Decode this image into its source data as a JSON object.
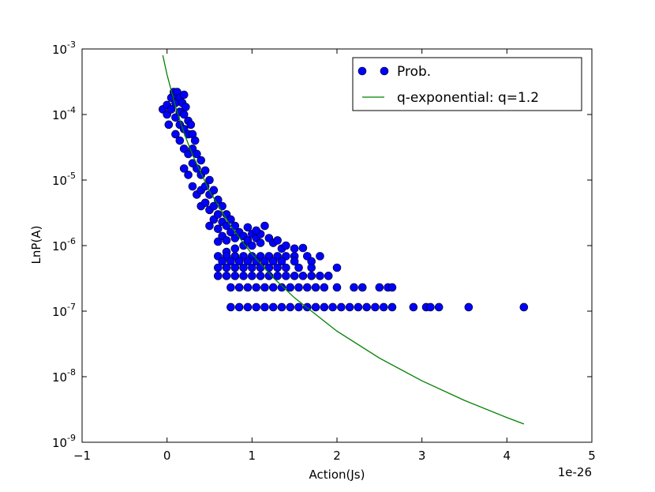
{
  "chart_data": {
    "type": "scatter",
    "xlabel": "Action(Js)",
    "ylabel": "LnP(A)",
    "x_offset_label": "1e-26",
    "xlim": [
      -1,
      5
    ],
    "ylim": [
      1e-09,
      0.001
    ],
    "log_y": true,
    "xticks": [
      {
        "value": -1,
        "label": "−1"
      },
      0,
      1,
      2,
      3,
      4,
      5
    ],
    "yticks": [
      {
        "value": 1e-09,
        "label": "10-9"
      },
      {
        "value": 1e-08,
        "label": "10-8"
      },
      {
        "value": 1e-07,
        "label": "10-7"
      },
      {
        "value": 1e-06,
        "label": "10-6"
      },
      {
        "value": 1e-05,
        "label": "10-5"
      },
      {
        "value": 0.0001,
        "label": "10-4"
      },
      {
        "value": 0.001,
        "label": "10-3"
      }
    ],
    "legend": "upper right",
    "series": [
      {
        "name": "Prob.",
        "type": "scatter",
        "color": "#0000ff",
        "x": [
          -0.05,
          0,
          0,
          0.02,
          0.05,
          0.05,
          0.08,
          0.1,
          0.1,
          0.1,
          0.1,
          0.12,
          0.15,
          0.15,
          0.15,
          0.15,
          0.18,
          0.2,
          0.2,
          0.2,
          0.2,
          0.2,
          0.22,
          0.25,
          0.25,
          0.25,
          0.25,
          0.28,
          0.3,
          0.3,
          0.3,
          0.3,
          0.33,
          0.35,
          0.35,
          0.35,
          0.4,
          0.4,
          0.4,
          0.4,
          0.45,
          0.45,
          0.45,
          0.5,
          0.5,
          0.5,
          0.5,
          0.55,
          0.55,
          0.55,
          0.6,
          0.6,
          0.6,
          0.6,
          0.65,
          0.65,
          0.65,
          0.7,
          0.7,
          0.7,
          0.7,
          0.75,
          0.75,
          0.8,
          0.8,
          0.8,
          0.85,
          0.9,
          0.9,
          0.95,
          1.0,
          1.0,
          1.05,
          1.1,
          1.1,
          1.15,
          1.2,
          1.25,
          1.3,
          1.35,
          1.4,
          1.5,
          1.6,
          1.05,
          0.95,
          0.6,
          0.7,
          0.8,
          0.9,
          1.0,
          1.1,
          1.2,
          1.3,
          1.4,
          1.5,
          1.65,
          1.8,
          0.65,
          0.75,
          0.85,
          0.95,
          1.05,
          1.15,
          1.25,
          1.35,
          1.5,
          1.7,
          0.6,
          0.7,
          0.8,
          0.9,
          1.0,
          1.1,
          1.2,
          1.3,
          1.4,
          1.55,
          1.7,
          2.0,
          0.6,
          0.7,
          0.8,
          0.9,
          1.0,
          1.1,
          1.2,
          1.3,
          1.4,
          1.5,
          1.6,
          1.7,
          1.8,
          1.9,
          0.75,
          0.85,
          0.95,
          1.05,
          1.15,
          1.25,
          1.35,
          1.45,
          1.55,
          1.65,
          1.75,
          1.85,
          2.0,
          2.2,
          2.3,
          2.5,
          2.6,
          2.65,
          0.75,
          0.85,
          0.95,
          1.05,
          1.15,
          1.25,
          1.35,
          1.45,
          1.55,
          1.65,
          1.75,
          1.85,
          1.95,
          2.05,
          2.15,
          2.25,
          2.35,
          2.45,
          2.55,
          2.65,
          2.9,
          3.05,
          3.1,
          3.2,
          3.55,
          4.2
        ],
        "values": [
          0.00012,
          0.0001,
          0.00014,
          7e-05,
          0.00018,
          0.00012,
          0.00022,
          0.0002,
          0.00015,
          9e-05,
          5e-05,
          0.00022,
          0.00018,
          0.00011,
          7e-05,
          4e-05,
          0.00015,
          0.0002,
          0.0001,
          6e-05,
          3e-05,
          1.5e-05,
          0.00013,
          8e-05,
          5e-05,
          2.5e-05,
          1.2e-05,
          7e-05,
          5e-05,
          3e-05,
          1.8e-05,
          8e-06,
          4e-05,
          2.5e-05,
          1.5e-05,
          6e-06,
          2e-05,
          1.2e-05,
          7e-06,
          4e-06,
          1.4e-05,
          8e-06,
          4.5e-06,
          1e-05,
          6e-06,
          3.5e-06,
          2e-06,
          7e-06,
          4e-06,
          2.5e-06,
          5e-06,
          3e-06,
          1.8e-06,
          1.15e-06,
          4e-06,
          2.3e-06,
          1.4e-06,
          3e-06,
          2e-06,
          1.2e-06,
          8e-07,
          2.5e-06,
          1.6e-06,
          2e-06,
          1.3e-06,
          9e-07,
          1.6e-06,
          1.4e-06,
          1e-06,
          1.2e-06,
          1.5e-06,
          1e-06,
          1.3e-06,
          1.1e-06,
          1.5e-06,
          2e-06,
          1.3e-06,
          1.1e-06,
          1.2e-06,
          9e-07,
          1e-06,
          9e-07,
          9.2e-07,
          1.7e-06,
          1.9e-06,
          6.9e-07,
          6.9e-07,
          6.9e-07,
          6.9e-07,
          6.9e-07,
          6.9e-07,
          6.9e-07,
          6.9e-07,
          6.9e-07,
          6.9e-07,
          6.9e-07,
          6.9e-07,
          5.75e-07,
          5.75e-07,
          5.75e-07,
          5.75e-07,
          5.75e-07,
          5.75e-07,
          5.75e-07,
          5.75e-07,
          5.75e-07,
          5.75e-07,
          4.6e-07,
          4.6e-07,
          4.6e-07,
          4.6e-07,
          4.6e-07,
          4.6e-07,
          4.6e-07,
          4.6e-07,
          4.6e-07,
          4.6e-07,
          4.6e-07,
          4.6e-07,
          3.45e-07,
          3.45e-07,
          3.45e-07,
          3.45e-07,
          3.45e-07,
          3.45e-07,
          3.45e-07,
          3.45e-07,
          3.45e-07,
          3.45e-07,
          3.45e-07,
          3.45e-07,
          3.45e-07,
          3.45e-07,
          2.3e-07,
          2.3e-07,
          2.3e-07,
          2.3e-07,
          2.3e-07,
          2.3e-07,
          2.3e-07,
          2.3e-07,
          2.3e-07,
          2.3e-07,
          2.3e-07,
          2.3e-07,
          2.3e-07,
          2.3e-07,
          2.3e-07,
          2.3e-07,
          2.3e-07,
          2.3e-07,
          1.15e-07,
          1.15e-07,
          1.15e-07,
          1.15e-07,
          1.15e-07,
          1.15e-07,
          1.15e-07,
          1.15e-07,
          1.15e-07,
          1.15e-07,
          1.15e-07,
          1.15e-07,
          1.15e-07,
          1.15e-07,
          1.15e-07,
          1.15e-07,
          1.15e-07,
          1.15e-07,
          1.15e-07,
          1.15e-07,
          1.15e-07,
          1.15e-07,
          1.15e-07,
          1.15e-07,
          1.15e-07,
          1.15e-07
        ]
      },
      {
        "name": "q-exponential: q=1.2",
        "type": "line",
        "color": "#008000",
        "x": [
          -0.05,
          0,
          0.1,
          0.2,
          0.3,
          0.5,
          0.75,
          1,
          1.25,
          1.5,
          2,
          2.5,
          3,
          3.5,
          4,
          4.2
        ],
        "values": [
          0.0008,
          0.000406,
          0.000132,
          5.24e-05,
          2.41e-05,
          6.8e-06,
          1.98e-06,
          7.4e-07,
          3.24e-07,
          1.6e-07,
          4.95e-08,
          1.92e-08,
          8.65e-09,
          4.35e-09,
          2.38e-09,
          1.9e-09
        ]
      }
    ]
  }
}
